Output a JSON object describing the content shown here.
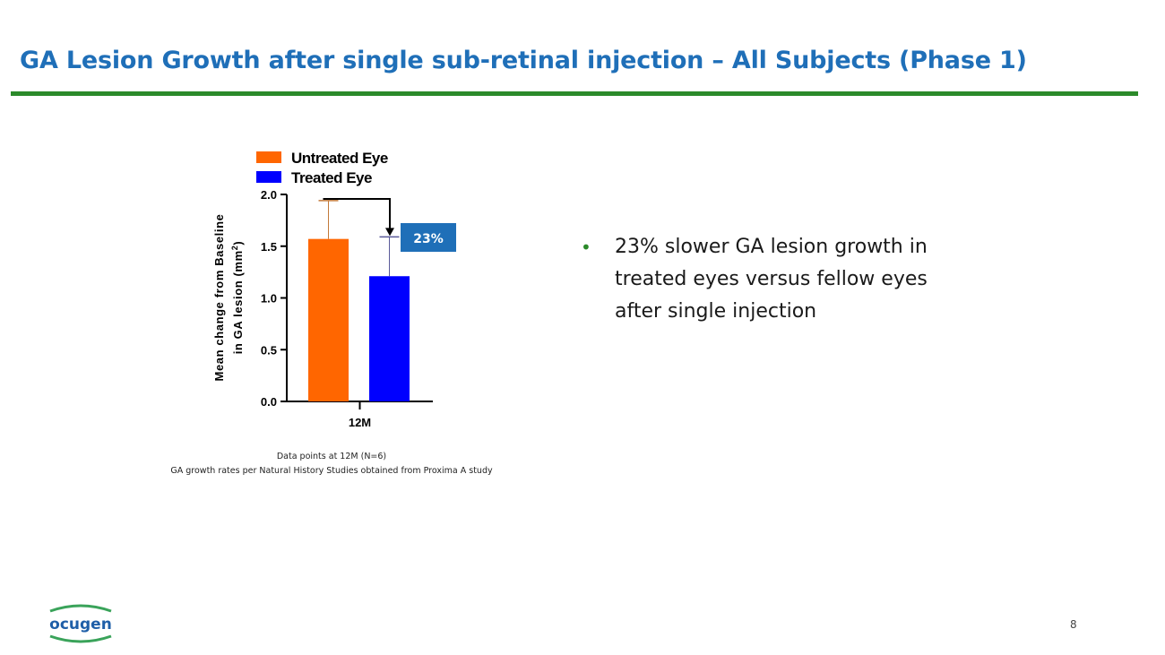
{
  "slide": {
    "title": "GA Lesion Growth after single sub-retinal injection – All Subjects  (Phase 1)",
    "page_number": "8",
    "logo_text": "ocugen"
  },
  "bullet": {
    "text": "23% slower GA lesion growth in treated eyes versus fellow eyes after single injection"
  },
  "notes": {
    "line1": "Data points at 12M (N=6)",
    "line2": "GA growth rates per Natural History Studies obtained from Proxima A study"
  },
  "colors": {
    "title": "#1f6fb8",
    "rule": "#2b8a2a",
    "untreated": "#ff6600",
    "treated": "#0000ff",
    "callout": "#1f6fb8"
  },
  "chart_data": {
    "type": "bar",
    "categories": [
      "12M"
    ],
    "series": [
      {
        "name": "Untreated Eye",
        "values": [
          1.57
        ],
        "error": [
          0.37
        ]
      },
      {
        "name": "Treated Eye",
        "values": [
          1.21
        ],
        "error": [
          0.38
        ]
      }
    ],
    "ylabel_line1": "Mean change from Baseline",
    "ylabel_line2": "in GA lesion (mm",
    "ylabel_sup": "2",
    "ylabel_close": ")",
    "ylim": [
      0,
      2.0
    ],
    "yticks": [
      "0.0",
      "0.5",
      "1.0",
      "1.5",
      "2.0"
    ],
    "annotation": "23%",
    "legend_position": "top"
  }
}
